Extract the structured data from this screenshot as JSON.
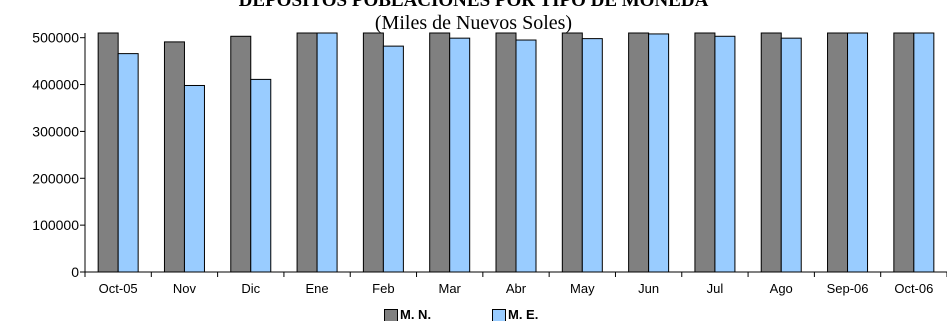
{
  "chart_data": {
    "type": "bar",
    "title": "DEPÓSITOS POBLACIONES POR TIPO DE MONEDA",
    "subtitle": "(Miles de Nuevos Soles)",
    "xlabel": "",
    "ylabel": "",
    "ylim": [
      0,
      510000
    ],
    "yticks": [
      0,
      100000,
      200000,
      300000,
      400000,
      500000
    ],
    "categories": [
      "Oct-05",
      "Nov",
      "Dic",
      "Ene",
      "Feb",
      "Mar",
      "Abr",
      "May",
      "Jun",
      "Jul",
      "Ago",
      "Sep-06",
      "Oct-06"
    ],
    "series": [
      {
        "name": "M. N.",
        "color": "#808080",
        "values": [
          510000,
          491000,
          503000,
          510000,
          510000,
          510000,
          510000,
          510000,
          510000,
          510000,
          510000,
          510000,
          510000
        ]
      },
      {
        "name": "M. E.",
        "color": "#99ccff",
        "values": [
          466000,
          398000,
          411000,
          510000,
          482000,
          499000,
          495000,
          498000,
          508000,
          503000,
          499000,
          510000,
          510000
        ]
      }
    ],
    "grid": false,
    "legend": "bottom"
  }
}
